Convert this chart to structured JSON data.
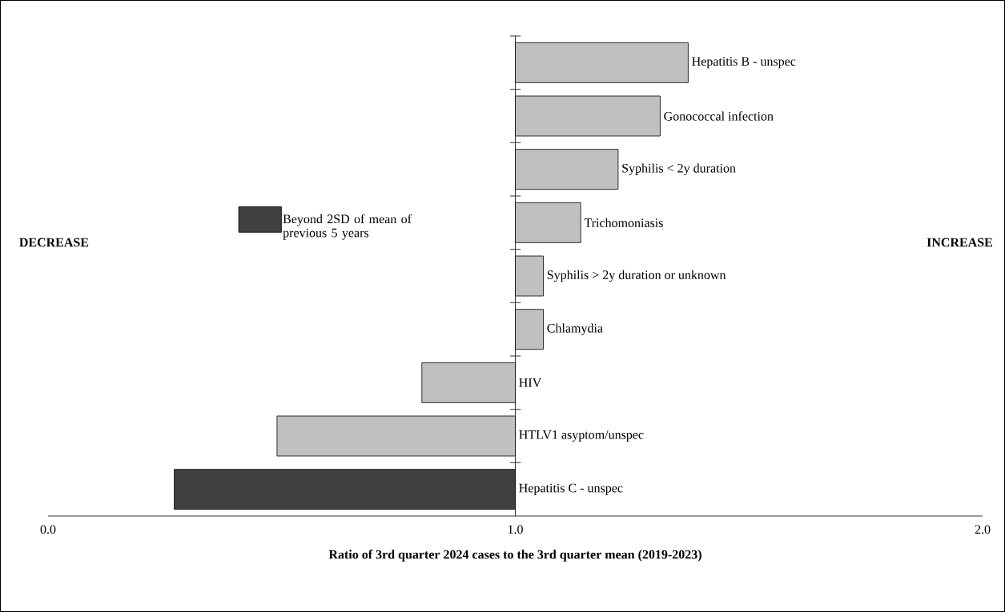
{
  "chart_data": {
    "type": "bar",
    "orientation": "horizontal",
    "xlabel": "**Ratio of 3rd quarter 2024 cases to the 3rd quarter mean (2019-2023)**",
    "categories": [
      "Hepatitis B - unspec",
      "Gonococcal infection",
      "Syphilis < 2y duration",
      "Trichomoniasis",
      "Syphilis > 2y duration or unknown",
      "Chlamydia",
      "HIV",
      "HTLV1 asyptom/unspec",
      "Hepatitis C - unspec"
    ],
    "series": [
      {
        "color": "#c0c0c0",
        "base": [
          1,
          1,
          1,
          1,
          1,
          1,
          1,
          1,
          null
        ],
        "values": [
          0.37,
          0.31,
          0.22,
          0.14,
          0.06,
          0.06,
          -0.2,
          -0.51,
          null
        ]
      },
      {
        "name": "Beyond 2SD of mean of previous 5 years",
        "color": "#404040",
        "base": [
          null,
          null,
          null,
          null,
          null,
          null,
          null,
          null,
          1
        ],
        "values": [
          null,
          null,
          null,
          null,
          null,
          null,
          null,
          null,
          -0.73
        ]
      }
    ],
    "xlim": [
      0,
      2
    ],
    "xticks": [
      {
        "value": 0,
        "label": "0.0"
      },
      {
        "value": 1,
        "label": "1.0"
      },
      {
        "value": 2,
        "label": "2.0"
      }
    ],
    "legend": "top left",
    "annotations": [
      "**DECREASE**",
      "**INCREASE**"
    ]
  }
}
